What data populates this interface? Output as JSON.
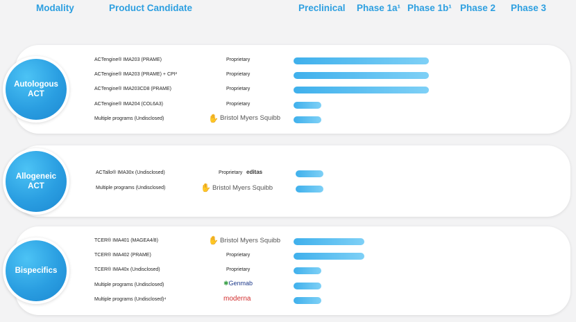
{
  "headers": {
    "modality": "Modality",
    "product_candidate": "Product Candidate",
    "preclinical": "Preclinical",
    "phase_1a": "Phase 1a¹",
    "phase_1b": "Phase 1b¹",
    "phase_2": "Phase 2",
    "phase_3": "Phase 3"
  },
  "colors": {
    "header_text": "#2d9fe0",
    "badge": "#2a9ee1",
    "bar_start": "#3fb0ec",
    "bar_end": "#7ed0f6",
    "bms_logo": "#be2bbb",
    "moderna_logo": "#d22e2e",
    "genmab_logo": "#1d3a8a"
  },
  "chart_data": {
    "type": "bar",
    "orientation": "horizontal",
    "stages": [
      "Preclinical",
      "Phase 1a¹",
      "Phase 1b¹",
      "Phase 2",
      "Phase 3"
    ],
    "note": "bar value = development stage reached (1 = Preclinical ... 5 = Phase 3)",
    "groups": [
      {
        "modality": "Autologous\nACT",
        "programs": [
          {
            "name": "ACTengine® IMA203 (PRAME)",
            "partner": "Proprietary",
            "partner_type": "text",
            "value": 2.95
          },
          {
            "name": "ACTengine® IMA203 (PRAME) + CPI²",
            "partner": "Proprietary",
            "partner_type": "text",
            "value": 2.95
          },
          {
            "name": "ACTengine® IMA203CD8 (PRAME)",
            "partner": "Proprietary",
            "partner_type": "text",
            "value": 2.95
          },
          {
            "name": "ACTengine® IMA204 (COL6A3)",
            "partner": "Proprietary",
            "partner_type": "text",
            "value": 0.6
          },
          {
            "name": "Multiple programs (Undisclosed)",
            "partner": "Bristol Myers Squibb",
            "partner_type": "bms",
            "value": 0.6
          }
        ]
      },
      {
        "modality": "Allogeneic\nACT",
        "programs": [
          {
            "name": "ACTallo® IMA30x (Undisclosed)",
            "partner": "Proprietary",
            "partner_logo": "editas",
            "partner_type": "editas",
            "value": 0.6
          },
          {
            "name": "Multiple programs (Undisclosed)",
            "partner": "Bristol Myers Squibb",
            "partner_type": "bms",
            "value": 0.6
          }
        ]
      },
      {
        "modality": "Bispecifics",
        "programs": [
          {
            "name": "TCER® IMA401 (MAGEA4/8)",
            "partner": "Bristol Myers Squibb",
            "partner_type": "bms",
            "value": 1.55
          },
          {
            "name": "TCER® IMA402 (PRAME)",
            "partner": "Proprietary",
            "partner_type": "text",
            "value": 1.55
          },
          {
            "name": "TCER® IMA40x (Undisclosed)",
            "partner": "Proprietary",
            "partner_type": "text",
            "value": 0.6
          },
          {
            "name": "Multiple programs (Undisclosed)",
            "partner": "Genmab",
            "partner_type": "genmab",
            "value": 0.6
          },
          {
            "name": "Multiple programs (Undisclosed)⁴",
            "partner": "moderna",
            "partner_type": "moderna",
            "value": 0.6
          }
        ]
      }
    ]
  }
}
